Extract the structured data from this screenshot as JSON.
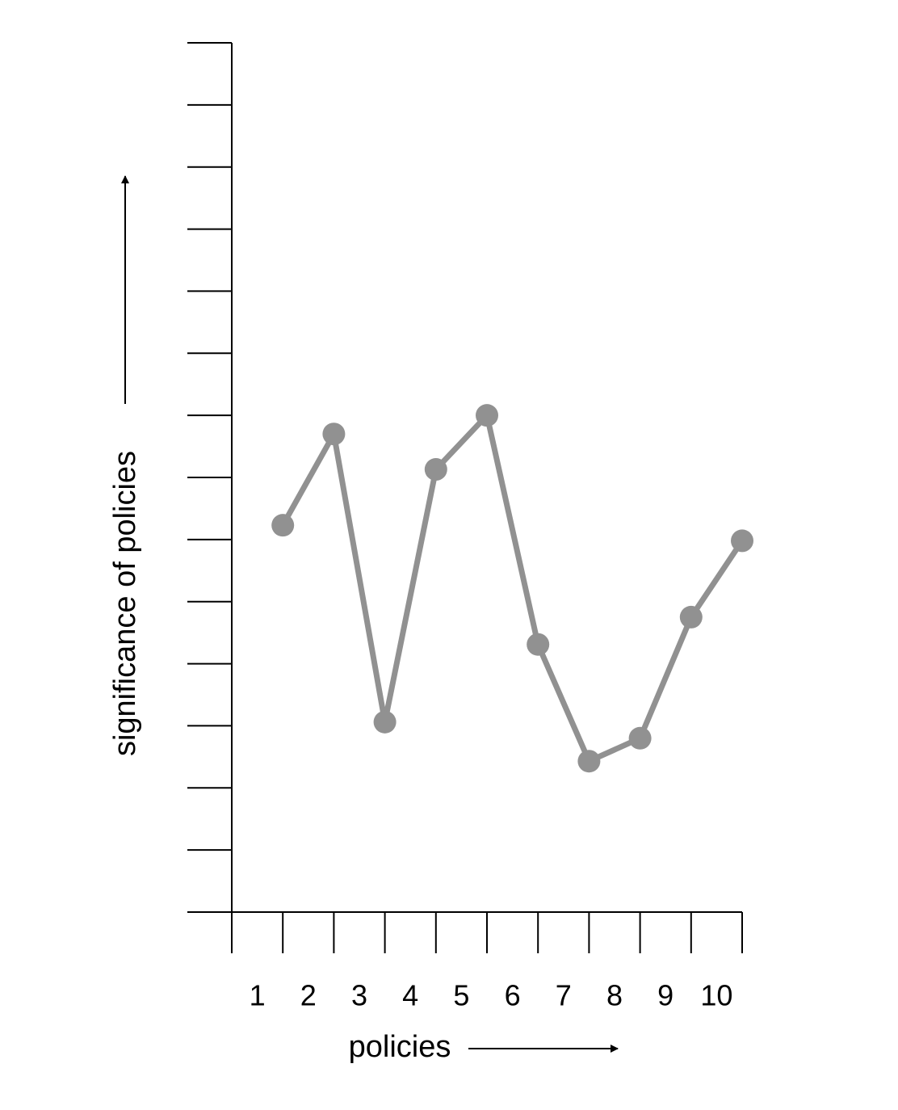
{
  "chart_data": {
    "type": "line",
    "x_label": "policies",
    "y_label": "significance of policies",
    "x": [
      1,
      2,
      3,
      4,
      5,
      6,
      7,
      8,
      9,
      10
    ],
    "series": [
      {
        "color": "#919191",
        "values": [
          6.23,
          7.7,
          3.06,
          7.13,
          8.0,
          4.31,
          2.43,
          2.8,
          4.75,
          5.98
        ]
      }
    ],
    "xlim": [
      0,
      10
    ],
    "xticks": [
      0,
      1,
      2,
      3,
      4,
      5,
      6,
      7,
      8,
      9,
      10
    ],
    "ylim": [
      0,
      14
    ],
    "yticks": [
      0,
      1,
      2,
      3,
      4,
      5,
      6,
      7,
      8,
      9,
      10,
      11,
      12,
      13,
      14
    ]
  }
}
